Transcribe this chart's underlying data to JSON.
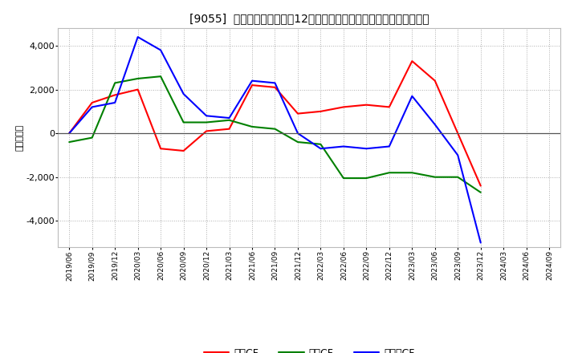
{
  "title": "[9055]  キャッシュフローの12か月移動合計の対前年同期増減額の推移",
  "ylabel": "（百万円）",
  "xlabels": [
    "2019/06",
    "2019/09",
    "2019/12",
    "2020/03",
    "2020/06",
    "2020/09",
    "2020/12",
    "2021/03",
    "2021/06",
    "2021/09",
    "2021/12",
    "2022/03",
    "2022/06",
    "2022/09",
    "2022/12",
    "2023/03",
    "2023/06",
    "2023/09",
    "2023/12",
    "2024/03",
    "2024/06",
    "2024/09"
  ],
  "operating_cf": [
    0,
    1400,
    1750,
    2000,
    -700,
    -800,
    100,
    200,
    2200,
    2100,
    900,
    1000,
    1200,
    1300,
    1200,
    3300,
    2400,
    0,
    -2400,
    null,
    null,
    null
  ],
  "investing_cf": [
    -400,
    -200,
    2300,
    2500,
    2600,
    500,
    500,
    600,
    300,
    200,
    -400,
    -500,
    -2050,
    -2050,
    -1800,
    -1800,
    -2000,
    -2000,
    -2700,
    null,
    null,
    null
  ],
  "free_cf": [
    0,
    1200,
    1400,
    4400,
    3800,
    1800,
    800,
    700,
    2400,
    2300,
    0,
    -700,
    -600,
    -700,
    -600,
    1700,
    400,
    -1000,
    -5000,
    null,
    null,
    null
  ],
  "colors": {
    "operating": "#ff0000",
    "investing": "#008000",
    "free": "#0000ff"
  },
  "ylim": [
    -5200,
    4800
  ],
  "yticks": [
    -4000,
    -2000,
    0,
    2000,
    4000
  ],
  "bg_color": "#ffffff",
  "plot_bg_color": "#ffffff",
  "grid_color": "#999999",
  "legend_labels": [
    "営業CF",
    "投資CF",
    "フリーCF"
  ]
}
